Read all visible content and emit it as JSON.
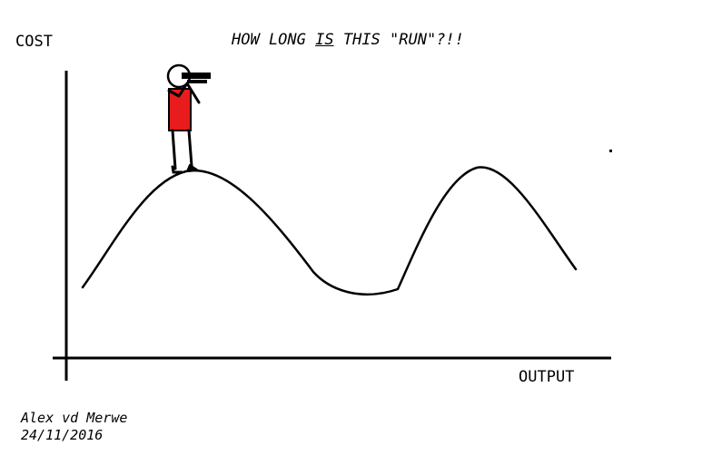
{
  "title": {
    "pre": "HOW LONG ",
    "emph": "IS",
    "post": " THIS \"RUN\"?!!"
  },
  "axes": {
    "y_label": "COST",
    "x_label": "OUTPUT"
  },
  "credit": {
    "author": "Alex vd Merwe",
    "date": "24/11/2016"
  },
  "figure": {
    "shirt_color": "#e81c1c",
    "line_color": "#000000"
  }
}
